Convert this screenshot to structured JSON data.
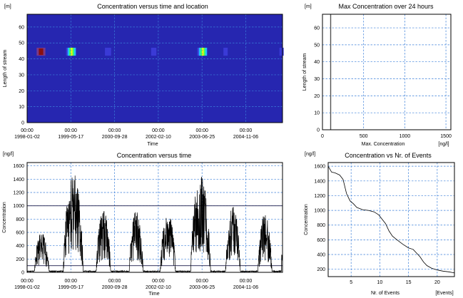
{
  "colors": {
    "heatmap_background": "#2626b0",
    "grid": "#3b7fd9",
    "line": "#000000",
    "hot": [
      "#3a3ad6",
      "#20c0ff",
      "#40ff60",
      "#ffff00",
      "#ff3b00",
      "#8a1010",
      "#7a3a8a"
    ]
  },
  "chart_data": [
    {
      "id": "heatmap",
      "type": "heatmap",
      "title": "Concentration versus time and location",
      "xlabel": "Time",
      "ylabel": "Length of stream",
      "y_unit": "[m]",
      "x_ticks": [
        "1998-01-02",
        "1999-05-17",
        "2000-09-28",
        "2002-02-10",
        "2003-06-25",
        "2004-11-06"
      ],
      "x_ticks_time": [
        "00:00",
        "00:00",
        "00:00",
        "00:00",
        "00:00",
        "00:00"
      ],
      "y_ticks": [
        "0",
        "10",
        "20",
        "30",
        "40",
        "50",
        "60"
      ],
      "ylim": [
        0,
        68
      ],
      "grid": true,
      "band_y": [
        42,
        47
      ],
      "blobs": [
        {
          "x": "1998-06-10",
          "width_days": 100,
          "level": "low-red"
        },
        {
          "x": "1999-05-17",
          "width_days": 110,
          "level": "hot"
        },
        {
          "x": "2000-07-15",
          "width_days": 70,
          "level": "low"
        },
        {
          "x": "2001-12-20",
          "width_days": 60,
          "level": "low"
        },
        {
          "x": "2003-06-25",
          "width_days": 110,
          "level": "hot"
        },
        {
          "x": "2004-03-20",
          "width_days": 40,
          "level": "low"
        },
        {
          "x": "2005-12-20",
          "width_days": 40,
          "level": "low"
        }
      ]
    },
    {
      "id": "max24",
      "type": "line",
      "title": "Max Concentration over 24 hours",
      "xlabel": "Max. Concentration",
      "x_unit": "[ng/l]",
      "ylabel": "Length of stream",
      "y_unit": "[m]",
      "x_ticks": [
        "0",
        "500",
        "1000",
        "1500"
      ],
      "xlim": [
        0,
        1560
      ],
      "y_ticks": [
        "0",
        "10",
        "20",
        "30",
        "40",
        "50",
        "60"
      ],
      "ylim": [
        0,
        68
      ],
      "grid": true,
      "series": [
        {
          "x": [
            100,
            100
          ],
          "y": [
            0,
            68
          ]
        }
      ]
    },
    {
      "id": "time",
      "type": "line",
      "title": "Concentration versus time",
      "xlabel": "Time",
      "ylabel": "Concentration",
      "y_unit": "[ng/l]",
      "x_ticks": [
        "1998-01-02",
        "1999-05-17",
        "2000-09-28",
        "2002-02-10",
        "2003-06-25",
        "2004-11-06"
      ],
      "x_ticks_time": [
        "00:00",
        "00:00",
        "00:00",
        "00:00",
        "00:00",
        "00:00"
      ],
      "y_ticks": [
        "0",
        "200",
        "400",
        "600",
        "800",
        "1000",
        "1200",
        "1400",
        "1600"
      ],
      "ylim": [
        0,
        1650
      ],
      "grid": true,
      "ref_lines": [
        1000,
        100
      ],
      "x_range": [
        "1998-01-02",
        "2005-12-31"
      ],
      "seasons": [
        {
          "start": "1998-03-25",
          "end": "1998-09-10",
          "peak": 600
        },
        {
          "start": "1999-02-20",
          "end": "1999-10-05",
          "peak": 1500
        },
        {
          "start": "2000-03-01",
          "end": "2000-08-15",
          "peak": 930
        },
        {
          "start": "2001-03-15",
          "end": "2001-08-20",
          "peak": 920
        },
        {
          "start": "2002-03-05",
          "end": "2002-08-25",
          "peak": 920
        },
        {
          "start": "2003-02-15",
          "end": "2003-09-30",
          "peak": 1470
        },
        {
          "start": "2004-03-20",
          "end": "2004-09-05",
          "peak": 990
        },
        {
          "start": "2005-03-25",
          "end": "2005-09-01",
          "peak": 880
        }
      ],
      "spike_at": "2005-12-25",
      "spike_value": 300
    },
    {
      "id": "events",
      "type": "line",
      "title": "Concentration vs Nr. of Events",
      "xlabel": "Nr. of Events",
      "x_unit": "[Events]",
      "ylabel": "Concentration",
      "y_unit": "[ng/l]",
      "x_ticks": [
        "5",
        "10",
        "15",
        "20"
      ],
      "xlim": [
        1,
        23
      ],
      "y_ticks": [
        "200",
        "400",
        "600",
        "800",
        "1000",
        "1200",
        "1400",
        "1600"
      ],
      "ylim": [
        100,
        1650
      ],
      "grid": true,
      "series": [
        {
          "x": [
            1,
            1.6,
            2.2,
            3,
            3.6,
            4.2,
            4.8,
            5.4,
            6,
            7,
            8,
            9,
            9.8,
            10.4,
            11,
            11.6,
            12.2,
            13,
            14,
            15,
            15.8,
            16.4,
            17,
            17.6,
            18.2,
            19,
            20,
            21,
            22,
            23
          ],
          "y": [
            1600,
            1520,
            1510,
            1480,
            1420,
            1230,
            1130,
            1090,
            1040,
            1010,
            1000,
            980,
            940,
            880,
            820,
            720,
            650,
            600,
            540,
            490,
            470,
            420,
            370,
            300,
            250,
            215,
            190,
            175,
            165,
            150
          ]
        }
      ]
    }
  ]
}
